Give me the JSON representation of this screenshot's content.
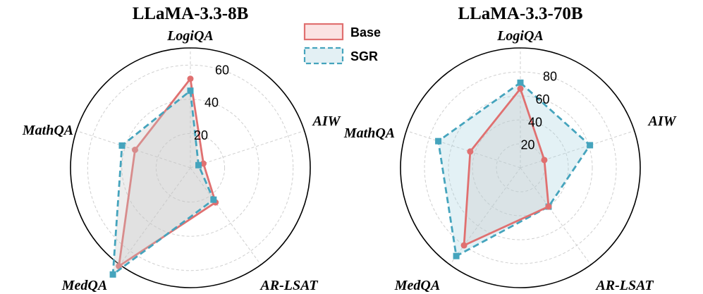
{
  "chart_data": [
    {
      "type": "radar",
      "title": "LLaMA-3.3-8B",
      "axes": [
        "LogiQA",
        "AIW",
        "AR-LSAT",
        "MedQA",
        "MathQA"
      ],
      "rmax": 70,
      "ticks": [
        20,
        40,
        60
      ],
      "grid": true,
      "series": [
        {
          "name": "Base",
          "values": [
            52,
            8,
            25,
            71,
            34
          ],
          "color": "#e07070",
          "fill": "#c8c8c8",
          "marker": "circle",
          "dash": "solid"
        },
        {
          "name": "SGR",
          "values": [
            45,
            5,
            23,
            77,
            42
          ],
          "color": "#45a4bd",
          "fill": "#c8c8c8",
          "marker": "square",
          "dash": "dashed"
        }
      ]
    },
    {
      "type": "radar",
      "title": "LLaMA-3.3-70B",
      "axes": [
        "LogiQA",
        "AIW",
        "AR-LSAT",
        "MedQA",
        "MathQA"
      ],
      "rmax": 100,
      "ticks": [
        20,
        40,
        60,
        80
      ],
      "grid": true,
      "series": [
        {
          "name": "SGR",
          "values": [
            71,
            61,
            40,
            91,
            72
          ],
          "color": "#45a4bd",
          "fill": "#a9d3df",
          "marker": "square",
          "dash": "dashed"
        },
        {
          "name": "Base",
          "values": [
            66,
            21,
            40,
            80,
            44
          ],
          "color": "#e07070",
          "fill": "#c8c8c8",
          "marker": "circle",
          "dash": "solid"
        }
      ]
    }
  ],
  "legend": {
    "placement": "top-center",
    "items": [
      {
        "name": "Base",
        "color": "#e07070",
        "fill": "#fbe3e3",
        "dash": "solid"
      },
      {
        "name": "SGR",
        "color": "#45a4bd",
        "fill": "#e3f0f4",
        "dash": "dashed"
      }
    ]
  }
}
